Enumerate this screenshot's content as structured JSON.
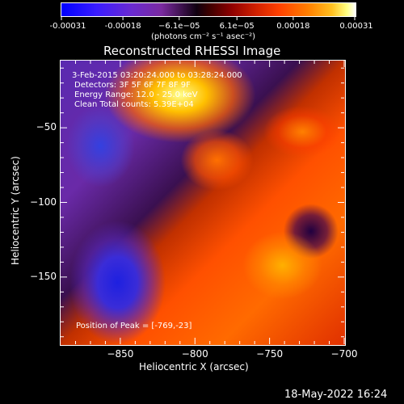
{
  "chart_data": {
    "type": "heatmap",
    "title": "Reconstructed RHESSI Image",
    "xlabel": "Heliocentric X (arcsec)",
    "ylabel": "Heliocentric Y (arcsec)",
    "xlim": [
      -890,
      -700
    ],
    "ylim": [
      -195,
      -5
    ],
    "x_ticks": [
      -850,
      -800,
      -750,
      -700
    ],
    "x_tick_labels": [
      "−850",
      "−800",
      "−750",
      "−700"
    ],
    "y_ticks": [
      -50,
      -100,
      -150
    ],
    "y_tick_labels": [
      "−50",
      "−100",
      "−150"
    ],
    "colorbar": {
      "range": [
        -0.00031,
        0.00031
      ],
      "tick_values": [
        -0.00031,
        -0.00018,
        -6.1e-05,
        6.1e-05,
        0.00018,
        0.00031
      ],
      "tick_labels": [
        "-0.00031",
        "-0.00018",
        "−6.1e−05",
        "6.1e−05",
        "0.00018",
        "0.00031"
      ],
      "units_label": "(photons cm⁻² s⁻¹ asec⁻²)"
    },
    "annotations": {
      "time_range": "3-Feb-2015 03:20:24.000 to 03:28:24.000",
      "detectors": "Detectors: 3F 5F 6F 7F 8F 9F",
      "energy_range": "Energy Range: 12.0 - 25.0 keV",
      "method": "Clean    Total counts: 5.39E+04",
      "peak": "Position of Peak = [-769,-23]"
    }
  },
  "footer": {
    "date": "18-May-2022 16:24"
  }
}
